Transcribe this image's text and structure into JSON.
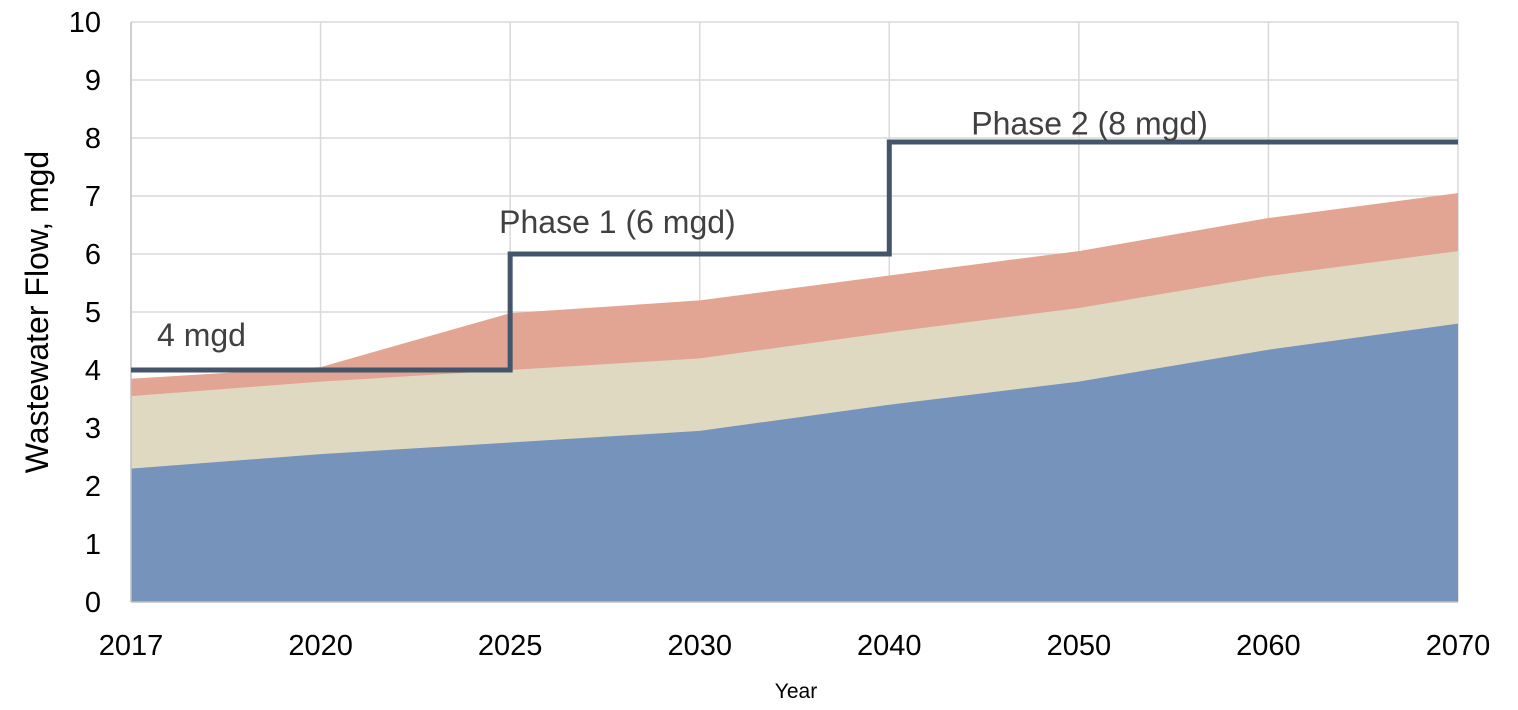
{
  "chart_data": {
    "type": "area",
    "title": "",
    "xlabel": "Year",
    "ylabel": "Wastewater Flow, mgd",
    "ylim": [
      0,
      10
    ],
    "y_ticks": [
      "0",
      "1",
      "2",
      "3",
      "4",
      "5",
      "6",
      "7",
      "8",
      "9",
      "10"
    ],
    "categories": [
      "2017",
      "2020",
      "2025",
      "2030",
      "2040",
      "2050",
      "2060",
      "2070"
    ],
    "grid": true,
    "legend": "none",
    "stack_totals": [
      [
        2.3,
        2.55,
        2.75,
        2.95,
        3.4,
        3.8,
        4.35,
        4.8
      ],
      [
        3.55,
        3.8,
        4.0,
        4.2,
        4.65,
        5.07,
        5.62,
        6.05
      ],
      [
        3.85,
        4.05,
        4.98,
        5.2,
        5.63,
        6.05,
        6.62,
        7.05
      ]
    ],
    "series": [
      {
        "values": [
          2.3,
          2.55,
          2.75,
          2.95,
          3.4,
          3.8,
          4.35,
          4.8
        ],
        "color": "#7593bb"
      },
      {
        "values": [
          1.25,
          1.25,
          1.25,
          1.25,
          1.25,
          1.27,
          1.27,
          1.25
        ],
        "color": "#dfd9c1"
      },
      {
        "values": [
          0.3,
          0.25,
          0.98,
          1.0,
          0.98,
          0.98,
          1.0,
          1.0
        ],
        "color": "#e2a493"
      }
    ],
    "capacity_line": {
      "color": "#44546a",
      "steps": [
        {
          "from": "2017",
          "to": "2025",
          "value": 4
        },
        {
          "from": "2025",
          "to": "2040",
          "value": 6
        },
        {
          "from": "2040",
          "to": "2070",
          "value": 7.93
        }
      ]
    },
    "annotations": [
      {
        "text": "4 mgd",
        "x": "2017",
        "y": 4.6
      },
      {
        "text": "Phase 1  (6 mgd)",
        "x": "2025",
        "y": 6.55
      },
      {
        "text": "Phase 2  (8 mgd)",
        "x": "2040",
        "y": 8.25
      }
    ]
  }
}
